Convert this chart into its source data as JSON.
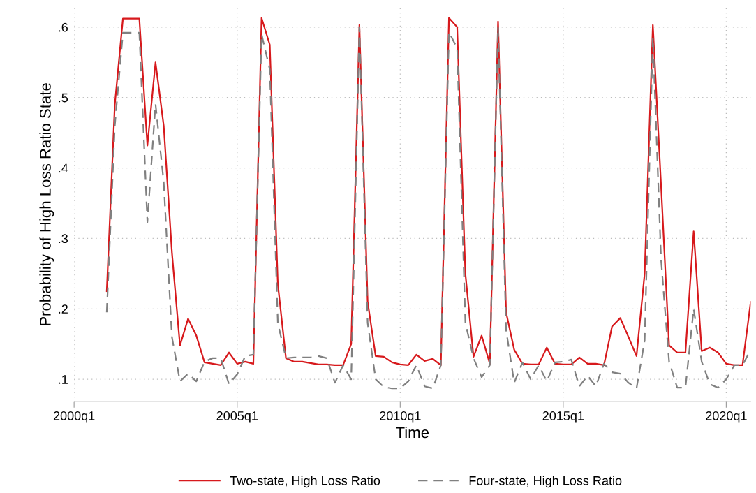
{
  "chart_data": {
    "type": "line",
    "xlabel": "Time",
    "ylabel": "Probability of High Loss Ratio State",
    "x": [
      "2001-01",
      "2001-04",
      "2001-07",
      "2001-10",
      "2002-01",
      "2002-04",
      "2002-07",
      "2002-10",
      "2003-01",
      "2003-04",
      "2003-07",
      "2003-10",
      "2004-01",
      "2004-04",
      "2004-07",
      "2004-10",
      "2005-01",
      "2005-04",
      "2005-07",
      "2005-10",
      "2006-01",
      "2006-04",
      "2006-07",
      "2006-10",
      "2007-01",
      "2007-04",
      "2007-07",
      "2007-10",
      "2008-01",
      "2008-04",
      "2008-07",
      "2008-10",
      "2009-01",
      "2009-04",
      "2009-07",
      "2009-10",
      "2010-01",
      "2010-04",
      "2010-07",
      "2010-10",
      "2011-01",
      "2011-04",
      "2011-07",
      "2011-10",
      "2012-01",
      "2012-04",
      "2012-07",
      "2012-10",
      "2013-01",
      "2013-04",
      "2013-07",
      "2013-10",
      "2014-01",
      "2014-04",
      "2014-07",
      "2014-10",
      "2015-01",
      "2015-04",
      "2015-07",
      "2015-10",
      "2016-01",
      "2016-04",
      "2016-07",
      "2016-10",
      "2017-01",
      "2017-04",
      "2017-07",
      "2017-10",
      "2018-01",
      "2018-04",
      "2018-07",
      "2018-10",
      "2019-01",
      "2019-04",
      "2019-07",
      "2019-10",
      "2020-01",
      "2020-04",
      "2020-07",
      "2020-10"
    ],
    "series": [
      {
        "name": "Two-state, High Loss Ratio",
        "color": "#d7191c",
        "line_style": "solid",
        "values": [
          0.225,
          0.49,
          0.612,
          0.612,
          0.612,
          0.432,
          0.55,
          0.46,
          0.28,
          0.148,
          0.186,
          0.162,
          0.124,
          0.122,
          0.12,
          0.138,
          0.122,
          0.125,
          0.122,
          0.613,
          0.575,
          0.235,
          0.13,
          0.125,
          0.125,
          0.123,
          0.121,
          0.121,
          0.12,
          0.12,
          0.15,
          0.603,
          0.21,
          0.133,
          0.132,
          0.124,
          0.121,
          0.12,
          0.135,
          0.126,
          0.129,
          0.12,
          0.613,
          0.6,
          0.25,
          0.132,
          0.162,
          0.122,
          0.608,
          0.195,
          0.142,
          0.122,
          0.121,
          0.121,
          0.145,
          0.122,
          0.121,
          0.121,
          0.131,
          0.122,
          0.122,
          0.12,
          0.175,
          0.187,
          0.16,
          0.133,
          0.25,
          0.603,
          0.375,
          0.148,
          0.138,
          0.138,
          0.31,
          0.14,
          0.145,
          0.138,
          0.122,
          0.12,
          0.12,
          0.21
        ]
      },
      {
        "name": "Four-state, High Loss Ratio",
        "color": "#808080",
        "line_style": "dashed",
        "values": [
          0.195,
          0.46,
          0.592,
          0.592,
          0.592,
          0.323,
          0.491,
          0.38,
          0.16,
          0.097,
          0.108,
          0.097,
          0.125,
          0.13,
          0.13,
          0.093,
          0.107,
          0.133,
          0.135,
          0.59,
          0.54,
          0.18,
          0.13,
          0.131,
          0.131,
          0.131,
          0.133,
          0.13,
          0.095,
          0.12,
          0.1,
          0.6,
          0.18,
          0.1,
          0.089,
          0.087,
          0.087,
          0.097,
          0.12,
          0.09,
          0.087,
          0.12,
          0.593,
          0.57,
          0.18,
          0.13,
          0.103,
          0.12,
          0.6,
          0.17,
          0.095,
          0.124,
          0.1,
          0.12,
          0.097,
          0.124,
          0.125,
          0.128,
          0.09,
          0.105,
          0.09,
          0.122,
          0.11,
          0.108,
          0.095,
          0.087,
          0.155,
          0.585,
          0.27,
          0.125,
          0.088,
          0.088,
          0.2,
          0.125,
          0.093,
          0.088,
          0.1,
          0.12,
          0.12,
          0.142
        ]
      }
    ],
    "xlim": [
      "2000-01",
      "2020-10"
    ],
    "xticks": [
      {
        "value": "2000-01",
        "label": "2000q1"
      },
      {
        "value": "2005-01",
        "label": "2005q1"
      },
      {
        "value": "2010-01",
        "label": "2010q1"
      },
      {
        "value": "2015-01",
        "label": "2015q1"
      },
      {
        "value": "2020-01",
        "label": "2020q1"
      }
    ],
    "ylim": [
      0.068,
      0.628
    ],
    "yticks": [
      {
        "value": 0.1,
        "label": ".1"
      },
      {
        "value": 0.2,
        "label": ".2"
      },
      {
        "value": 0.3,
        "label": ".3"
      },
      {
        "value": 0.4,
        "label": ".4"
      },
      {
        "value": 0.5,
        "label": ".5"
      },
      {
        "value": 0.6,
        "label": ".6"
      }
    ],
    "grid": true,
    "legend": "bottom"
  }
}
